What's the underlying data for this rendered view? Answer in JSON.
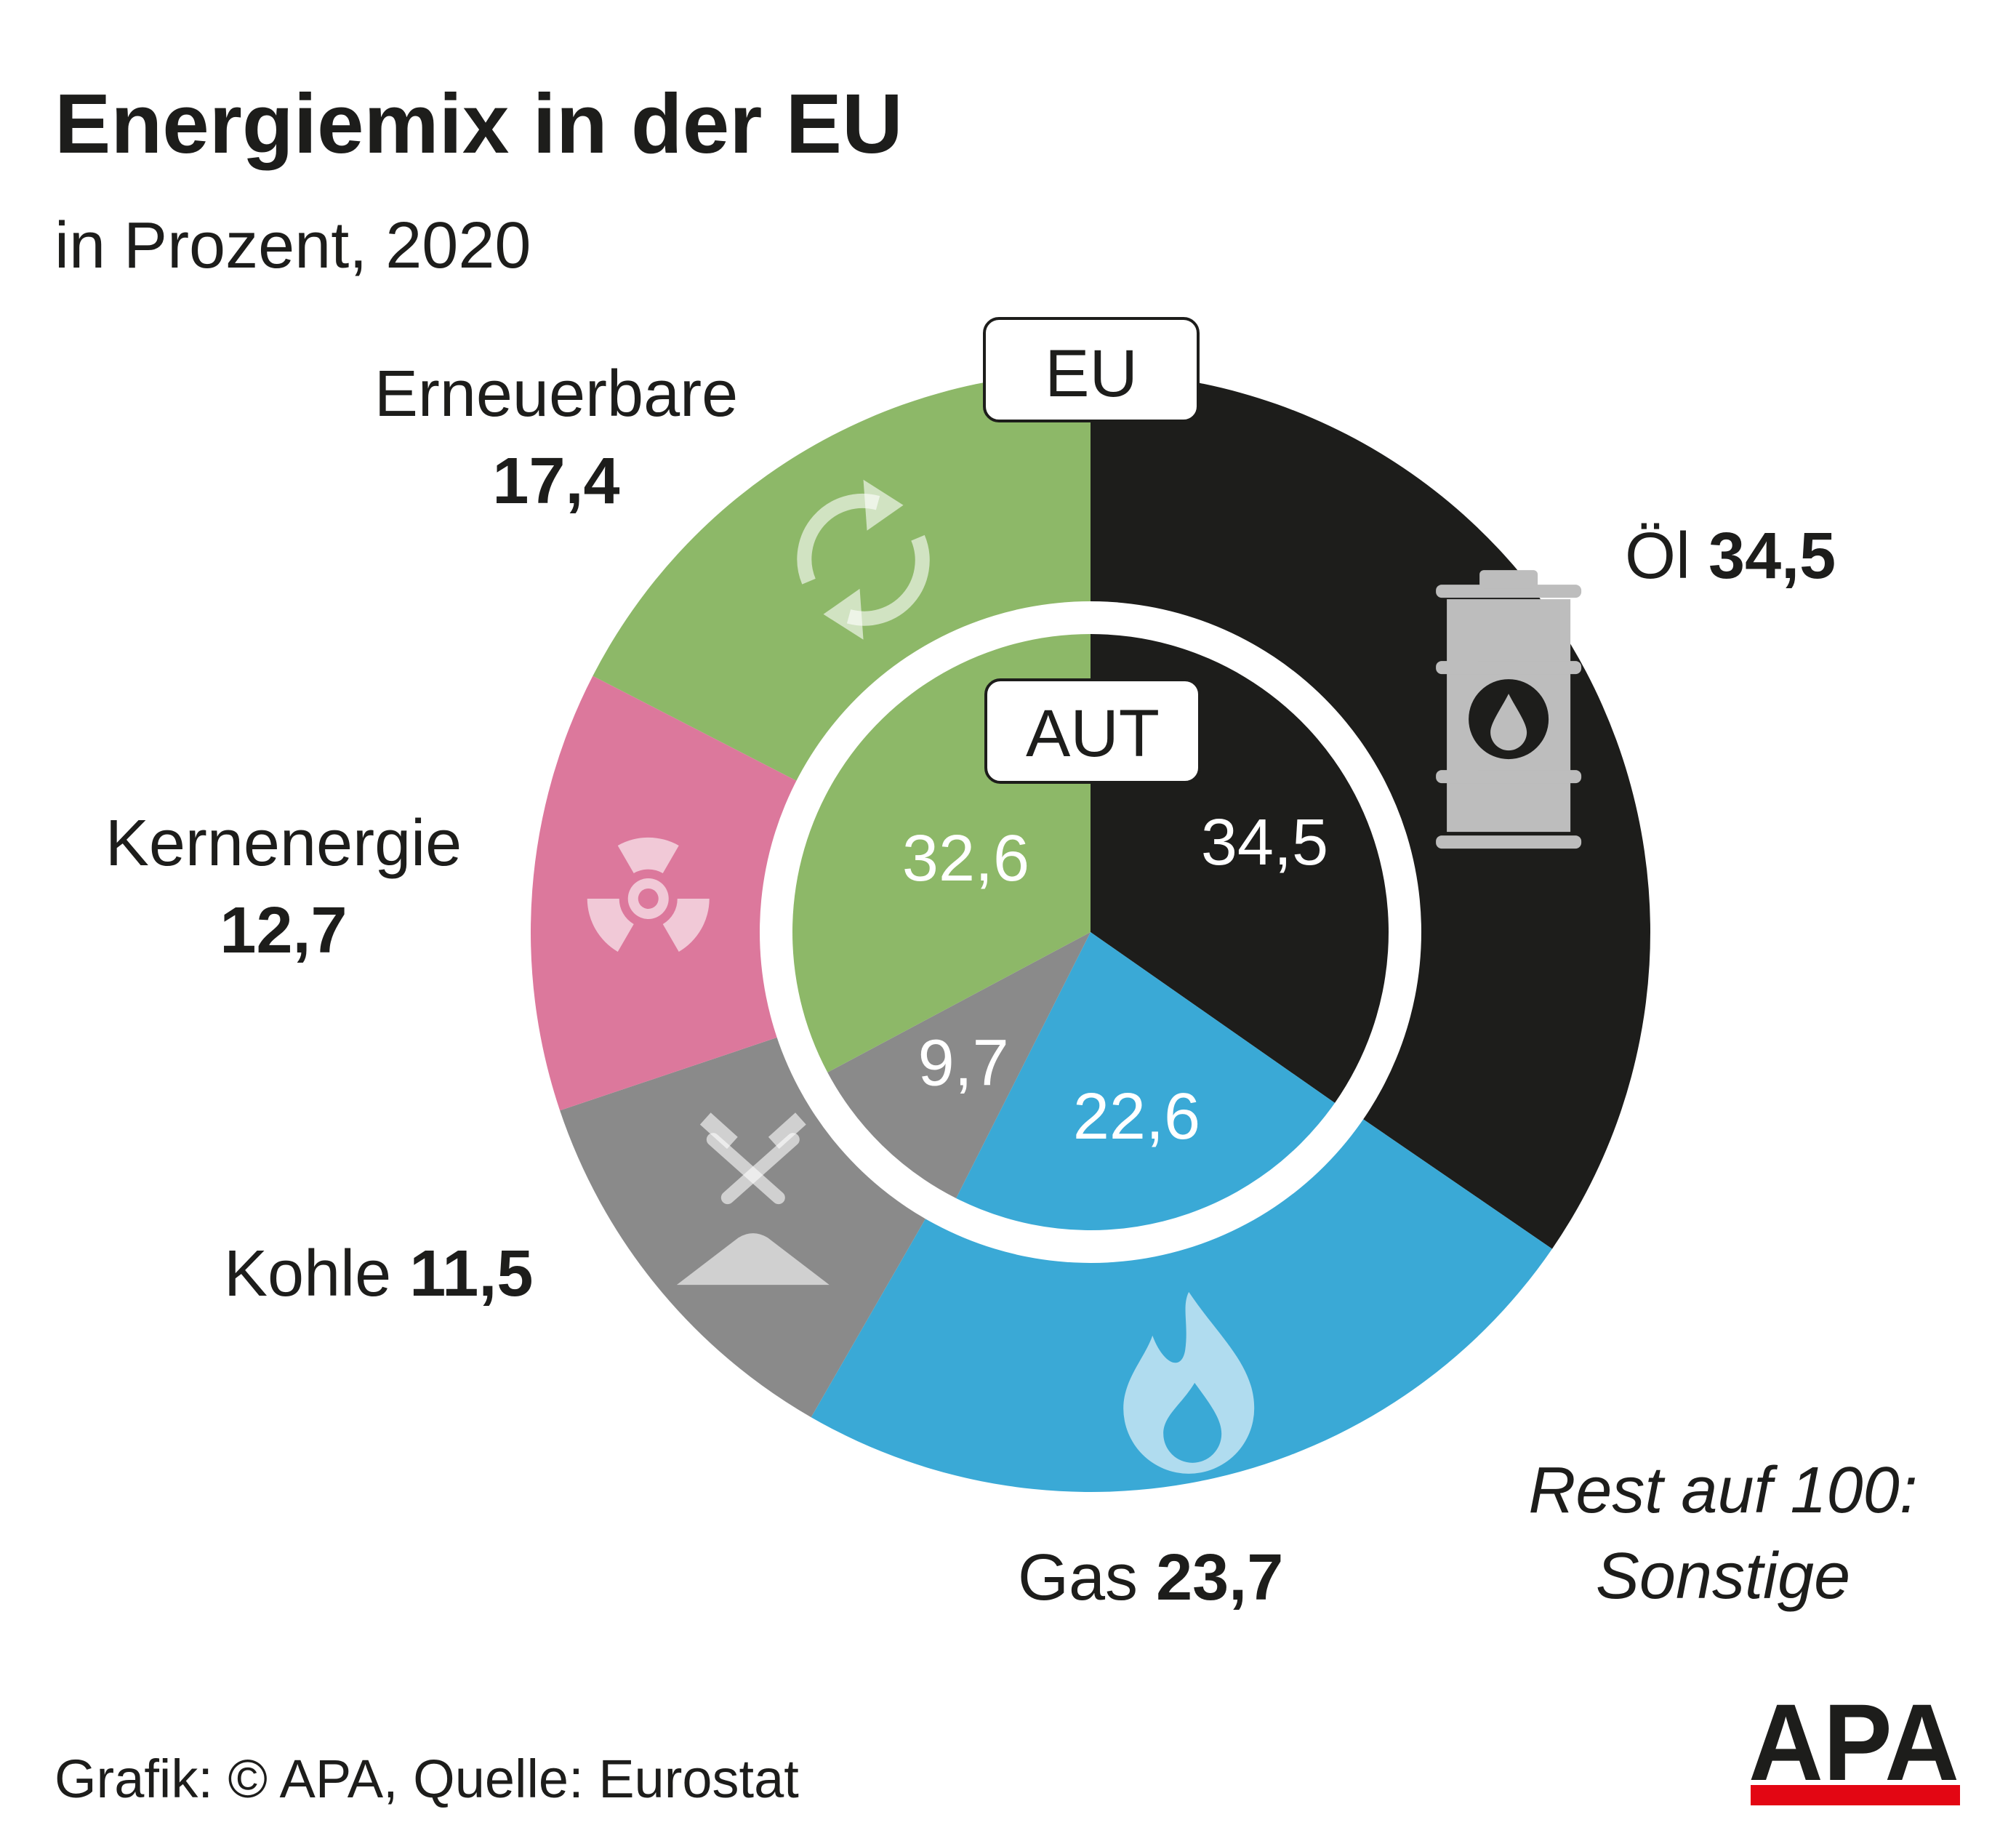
{
  "title": "Energiemix in der EU",
  "subtitle": "in Prozent, 2020",
  "footer": "Grafik: © APA, Quelle: Eurostat",
  "logo_text": "APA",
  "note": [
    "Rest auf 100:",
    "Sonstige"
  ],
  "chart_data": [
    {
      "type": "pie",
      "ring": "outer",
      "label": "EU",
      "categories": [
        "Öl",
        "Gas",
        "Kohle",
        "Kernenergie",
        "Erneuerbare"
      ],
      "values": [
        34.5,
        23.7,
        11.5,
        12.7,
        17.4
      ],
      "value_labels": [
        "34,5",
        "23,7",
        "11,5",
        "12,7",
        "17,4"
      ],
      "colors": [
        "#1d1d1b",
        "#3aa9d6",
        "#8a8a8a",
        "#dc789c",
        "#8db868"
      ]
    },
    {
      "type": "pie",
      "ring": "inner",
      "label": "AUT",
      "categories": [
        "Öl",
        "Gas",
        "Kohle",
        "Erneuerbare"
      ],
      "values": [
        34.5,
        22.6,
        9.7,
        32.6
      ],
      "value_labels": [
        "34,5",
        "22,6",
        "9,7",
        "32,6"
      ],
      "colors": [
        "#1d1d1b",
        "#3aa9d6",
        "#8a8a8a",
        "#8db868"
      ]
    }
  ],
  "icons": [
    "oil-barrel-icon",
    "gas-flame-icon",
    "coal-mine-icon",
    "radiation-icon",
    "recycle-icon"
  ],
  "icon_color": "rgba(255,255,255,0.6)",
  "logo_bar_color": "#e30613"
}
